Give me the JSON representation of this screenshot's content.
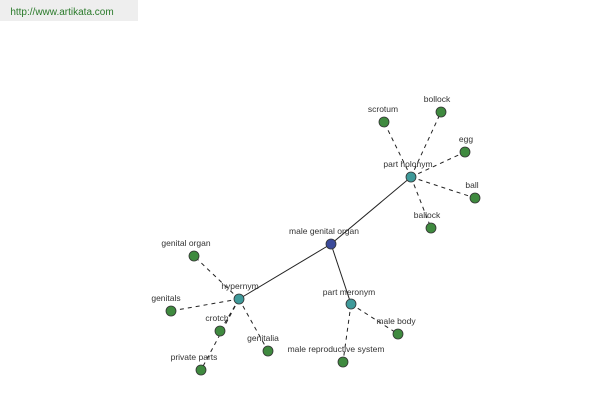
{
  "header": {
    "url": "http://www.artikata.com"
  },
  "nodes": [
    {
      "label": "male genital organ"
    },
    {
      "label": "part holonym"
    },
    {
      "label": "hypernym"
    },
    {
      "label": "part meronym"
    },
    {
      "label": "scrotum"
    },
    {
      "label": "bollock"
    },
    {
      "label": "egg"
    },
    {
      "label": "ball"
    },
    {
      "label": "ballock"
    },
    {
      "label": "genital organ"
    },
    {
      "label": "genitals"
    },
    {
      "label": "crotch"
    },
    {
      "label": "genitalia"
    },
    {
      "label": "private parts"
    },
    {
      "label": "male body"
    },
    {
      "label": "male reproductive system"
    }
  ]
}
